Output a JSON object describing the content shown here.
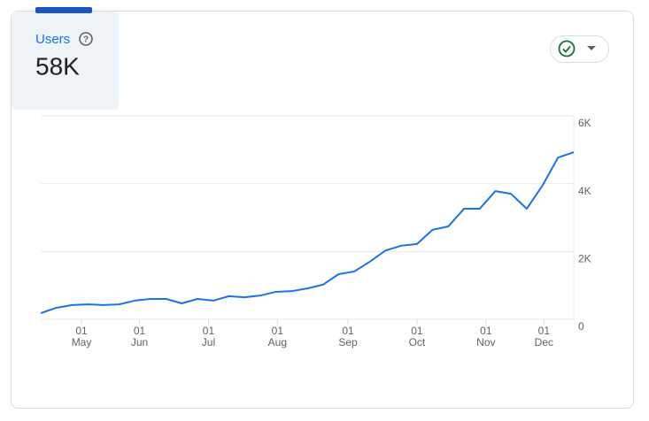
{
  "metric": {
    "label": "Users",
    "value": "58K"
  },
  "chart_data": {
    "type": "line",
    "series": [
      {
        "color": "#1a73e8",
        "values": [
          180,
          340,
          420,
          440,
          420,
          440,
          550,
          600,
          600,
          470,
          600,
          550,
          680,
          650,
          700,
          810,
          830,
          910,
          1020,
          1330,
          1410,
          1700,
          2030,
          2170,
          2220,
          2640,
          2740,
          3260,
          3260,
          3780,
          3700,
          3260,
          3940,
          4770,
          4930
        ]
      }
    ],
    "xlim": [
      0,
      34
    ],
    "xticks": [
      {
        "value": 2.6,
        "label": [
          "01",
          "May"
        ]
      },
      {
        "value": 6.3,
        "label": [
          "01",
          "Jun"
        ]
      },
      {
        "value": 10.7,
        "label": [
          "01",
          "Jul"
        ]
      },
      {
        "value": 15.1,
        "label": [
          "01",
          "Aug"
        ]
      },
      {
        "value": 19.6,
        "label": [
          "01",
          "Sep"
        ]
      },
      {
        "value": 24.0,
        "label": [
          "01",
          "Oct"
        ]
      },
      {
        "value": 28.4,
        "label": [
          "01",
          "Nov"
        ]
      },
      {
        "value": 32.1,
        "label": [
          "01",
          "Dec"
        ]
      }
    ],
    "ylim": [
      0,
      6000
    ],
    "yticks": [
      0,
      {
        "value": 2000,
        "label": "2K"
      },
      {
        "value": 4000,
        "label": "4K"
      },
      {
        "value": 6000,
        "label": "6K"
      }
    ],
    "grid": true
  }
}
